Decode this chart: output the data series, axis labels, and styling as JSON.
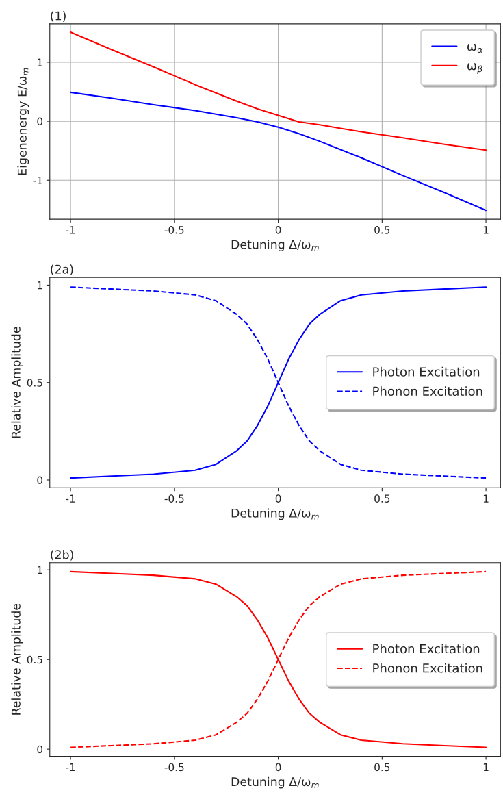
{
  "chart_data": [
    {
      "type": "line",
      "title": "(1)",
      "xlabel": "Detuning Δ/ω$_{m}$",
      "ylabel": "Eigenenergy E/ω$_{m}$",
      "grid": true,
      "legend": "top right",
      "xlim": [
        -1.1,
        1.07
      ],
      "ylim": [
        -1.66,
        1.65
      ],
      "xticks": [
        -1,
        -0.5,
        0,
        0.5,
        1
      ],
      "yticks": [
        -1,
        0,
        1
      ],
      "x": [
        -1,
        -0.8,
        -0.6,
        -0.4,
        -0.3,
        -0.2,
        -0.1,
        0,
        0.1,
        0.2,
        0.3,
        0.4,
        0.6,
        0.8,
        1
      ],
      "series": [
        {
          "name": "ω$_{α}$",
          "color": "#0000ff",
          "line_style": "solid",
          "values": [
            0.49,
            0.39,
            0.28,
            0.18,
            0.12,
            0.06,
            -0.01,
            -0.1,
            -0.21,
            -0.34,
            -0.48,
            -0.62,
            -0.92,
            -1.21,
            -1.51
          ]
        },
        {
          "name": "ω$_{β}$",
          "color": "#ff0000",
          "line_style": "solid",
          "values": [
            1.51,
            1.21,
            0.92,
            0.62,
            0.48,
            0.34,
            0.21,
            0.1,
            -0.01,
            -0.06,
            -0.12,
            -0.18,
            -0.28,
            -0.39,
            -0.49
          ]
        }
      ]
    },
    {
      "type": "line",
      "title": "(2a)",
      "xlabel": "Detuning Δ/ω$_{m}$",
      "ylabel": "Relative Amplitude",
      "legend": "right",
      "xlim": [
        -1.1,
        1.07
      ],
      "ylim": [
        -0.04,
        1.04
      ],
      "xticks": [
        -1,
        -0.5,
        0,
        0.5,
        1
      ],
      "yticks": [
        0,
        0.5,
        1
      ],
      "x": [
        -1,
        -0.8,
        -0.6,
        -0.4,
        -0.3,
        -0.2,
        -0.15,
        -0.1,
        -0.05,
        0,
        0.05,
        0.1,
        0.15,
        0.2,
        0.3,
        0.4,
        0.6,
        0.8,
        1
      ],
      "series": [
        {
          "name": "Photon Excitation",
          "color": "#0000ff",
          "line_style": "solid",
          "values": [
            0.01,
            0.02,
            0.03,
            0.05,
            0.08,
            0.15,
            0.2,
            0.28,
            0.38,
            0.5,
            0.62,
            0.72,
            0.8,
            0.85,
            0.92,
            0.95,
            0.97,
            0.98,
            0.99
          ]
        },
        {
          "name": "Phonon Excitation",
          "color": "#0000ff",
          "line_style": "dashed",
          "values": [
            0.99,
            0.98,
            0.97,
            0.95,
            0.92,
            0.85,
            0.8,
            0.72,
            0.62,
            0.5,
            0.38,
            0.28,
            0.2,
            0.15,
            0.08,
            0.05,
            0.03,
            0.02,
            0.01
          ]
        }
      ]
    },
    {
      "type": "line",
      "title": "(2b)",
      "xlabel": "Detuning Δ/ω$_{m}$",
      "ylabel": "Relative Amplitude",
      "legend": "right",
      "xlim": [
        -1.1,
        1.07
      ],
      "ylim": [
        -0.04,
        1.04
      ],
      "xticks": [
        -1,
        -0.5,
        0,
        0.5,
        1
      ],
      "yticks": [
        0,
        0.5,
        1
      ],
      "x": [
        -1,
        -0.8,
        -0.6,
        -0.4,
        -0.3,
        -0.2,
        -0.15,
        -0.1,
        -0.05,
        0,
        0.05,
        0.1,
        0.15,
        0.2,
        0.3,
        0.4,
        0.6,
        0.8,
        1
      ],
      "series": [
        {
          "name": "Photon Excitation",
          "color": "#ff0000",
          "line_style": "solid",
          "values": [
            0.99,
            0.98,
            0.97,
            0.95,
            0.92,
            0.85,
            0.8,
            0.72,
            0.62,
            0.5,
            0.38,
            0.28,
            0.2,
            0.15,
            0.08,
            0.05,
            0.03,
            0.02,
            0.01
          ]
        },
        {
          "name": "Phonon Excitation",
          "color": "#ff0000",
          "line_style": "dashed",
          "values": [
            0.01,
            0.02,
            0.03,
            0.05,
            0.08,
            0.15,
            0.2,
            0.28,
            0.38,
            0.5,
            0.62,
            0.72,
            0.8,
            0.85,
            0.92,
            0.95,
            0.97,
            0.98,
            0.99
          ]
        }
      ]
    }
  ]
}
